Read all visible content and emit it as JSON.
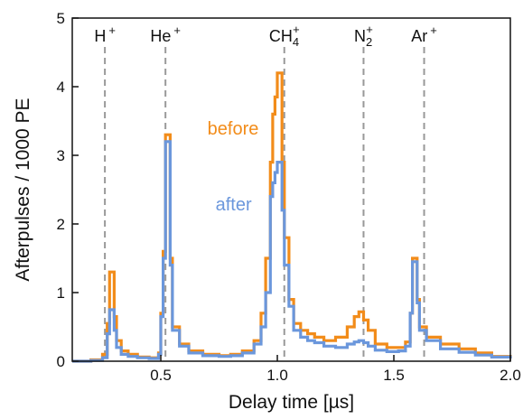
{
  "chart_data": {
    "type": "line",
    "xlabel": "Delay time [µs]",
    "ylabel": "Afterpulses / 1000 PE",
    "xlim": [
      0.12,
      2.0
    ],
    "ylim": [
      0,
      5
    ],
    "x_ticks": [
      {
        "value": 0.5,
        "label": "0.5"
      },
      {
        "value": 1.0,
        "label": "1.0"
      },
      {
        "value": 1.5,
        "label": "1.5"
      },
      {
        "value": 2.0,
        "label": "2.0"
      }
    ],
    "y_ticks": [
      {
        "value": 0,
        "label": "0"
      },
      {
        "value": 1,
        "label": "1"
      },
      {
        "value": 2,
        "label": "2"
      },
      {
        "value": 3,
        "label": "3"
      },
      {
        "value": 4,
        "label": "4"
      },
      {
        "value": 5,
        "label": "5"
      }
    ],
    "grid": false,
    "ion_markers": [
      {
        "x": 0.26,
        "base": "H",
        "sub": "",
        "sup": "+"
      },
      {
        "x": 0.52,
        "base": "He",
        "sub": "",
        "sup": "+"
      },
      {
        "x": 1.03,
        "base": "CH",
        "sub": "4",
        "sup": "+"
      },
      {
        "x": 1.37,
        "base": "N",
        "sub": "2",
        "sup": "+"
      },
      {
        "x": 1.63,
        "base": "Ar",
        "sub": "",
        "sup": "+"
      }
    ],
    "series": [
      {
        "name": "before",
        "color": "#f28c1a",
        "label_pos": {
          "x": 0.92,
          "y": 3.3
        },
        "points": [
          [
            0.12,
            0.0
          ],
          [
            0.2,
            0.02
          ],
          [
            0.25,
            0.1
          ],
          [
            0.27,
            0.55
          ],
          [
            0.28,
            1.3
          ],
          [
            0.3,
            0.65
          ],
          [
            0.31,
            0.3
          ],
          [
            0.33,
            0.15
          ],
          [
            0.36,
            0.1
          ],
          [
            0.4,
            0.06
          ],
          [
            0.45,
            0.05
          ],
          [
            0.49,
            0.12
          ],
          [
            0.5,
            0.7
          ],
          [
            0.51,
            1.6
          ],
          [
            0.52,
            3.3
          ],
          [
            0.54,
            1.5
          ],
          [
            0.55,
            0.5
          ],
          [
            0.58,
            0.25
          ],
          [
            0.62,
            0.15
          ],
          [
            0.68,
            0.1
          ],
          [
            0.75,
            0.08
          ],
          [
            0.8,
            0.1
          ],
          [
            0.85,
            0.15
          ],
          [
            0.9,
            0.3
          ],
          [
            0.93,
            0.7
          ],
          [
            0.95,
            1.5
          ],
          [
            0.97,
            2.9
          ],
          [
            0.98,
            3.6
          ],
          [
            0.99,
            3.85
          ],
          [
            1.0,
            4.2
          ],
          [
            1.02,
            2.9
          ],
          [
            1.03,
            1.8
          ],
          [
            1.05,
            0.9
          ],
          [
            1.07,
            0.55
          ],
          [
            1.1,
            0.45
          ],
          [
            1.13,
            0.4
          ],
          [
            1.16,
            0.35
          ],
          [
            1.2,
            0.3
          ],
          [
            1.25,
            0.35
          ],
          [
            1.3,
            0.5
          ],
          [
            1.33,
            0.65
          ],
          [
            1.35,
            0.72
          ],
          [
            1.37,
            0.6
          ],
          [
            1.39,
            0.45
          ],
          [
            1.42,
            0.25
          ],
          [
            1.47,
            0.2
          ],
          [
            1.52,
            0.2
          ],
          [
            1.55,
            0.28
          ],
          [
            1.57,
            0.7
          ],
          [
            1.58,
            1.5
          ],
          [
            1.6,
            0.9
          ],
          [
            1.61,
            0.5
          ],
          [
            1.64,
            0.35
          ],
          [
            1.7,
            0.25
          ],
          [
            1.78,
            0.18
          ],
          [
            1.85,
            0.12
          ],
          [
            1.92,
            0.07
          ],
          [
            2.0,
            0.04
          ]
        ]
      },
      {
        "name": "after",
        "color": "#6b97dc",
        "label_pos": {
          "x": 0.89,
          "y": 2.2
        },
        "points": [
          [
            0.12,
            0.0
          ],
          [
            0.2,
            0.01
          ],
          [
            0.25,
            0.05
          ],
          [
            0.27,
            0.4
          ],
          [
            0.28,
            0.75
          ],
          [
            0.3,
            0.45
          ],
          [
            0.31,
            0.2
          ],
          [
            0.33,
            0.1
          ],
          [
            0.36,
            0.07
          ],
          [
            0.4,
            0.05
          ],
          [
            0.45,
            0.04
          ],
          [
            0.49,
            0.1
          ],
          [
            0.5,
            0.65
          ],
          [
            0.51,
            1.5
          ],
          [
            0.52,
            3.2
          ],
          [
            0.54,
            1.4
          ],
          [
            0.55,
            0.45
          ],
          [
            0.58,
            0.22
          ],
          [
            0.62,
            0.12
          ],
          [
            0.68,
            0.08
          ],
          [
            0.75,
            0.07
          ],
          [
            0.8,
            0.08
          ],
          [
            0.85,
            0.12
          ],
          [
            0.9,
            0.25
          ],
          [
            0.93,
            0.5
          ],
          [
            0.95,
            1.0
          ],
          [
            0.97,
            2.4
          ],
          [
            0.98,
            2.6
          ],
          [
            0.99,
            2.75
          ],
          [
            1.0,
            2.9
          ],
          [
            1.02,
            2.2
          ],
          [
            1.03,
            1.4
          ],
          [
            1.05,
            0.8
          ],
          [
            1.07,
            0.45
          ],
          [
            1.1,
            0.35
          ],
          [
            1.13,
            0.3
          ],
          [
            1.16,
            0.27
          ],
          [
            1.2,
            0.22
          ],
          [
            1.25,
            0.2
          ],
          [
            1.3,
            0.25
          ],
          [
            1.33,
            0.28
          ],
          [
            1.35,
            0.3
          ],
          [
            1.37,
            0.27
          ],
          [
            1.39,
            0.22
          ],
          [
            1.42,
            0.16
          ],
          [
            1.47,
            0.14
          ],
          [
            1.52,
            0.15
          ],
          [
            1.55,
            0.22
          ],
          [
            1.57,
            0.7
          ],
          [
            1.58,
            1.45
          ],
          [
            1.6,
            0.85
          ],
          [
            1.61,
            0.45
          ],
          [
            1.64,
            0.3
          ],
          [
            1.7,
            0.18
          ],
          [
            1.78,
            0.13
          ],
          [
            1.85,
            0.09
          ],
          [
            1.92,
            0.06
          ],
          [
            2.0,
            0.04
          ]
        ]
      }
    ]
  }
}
